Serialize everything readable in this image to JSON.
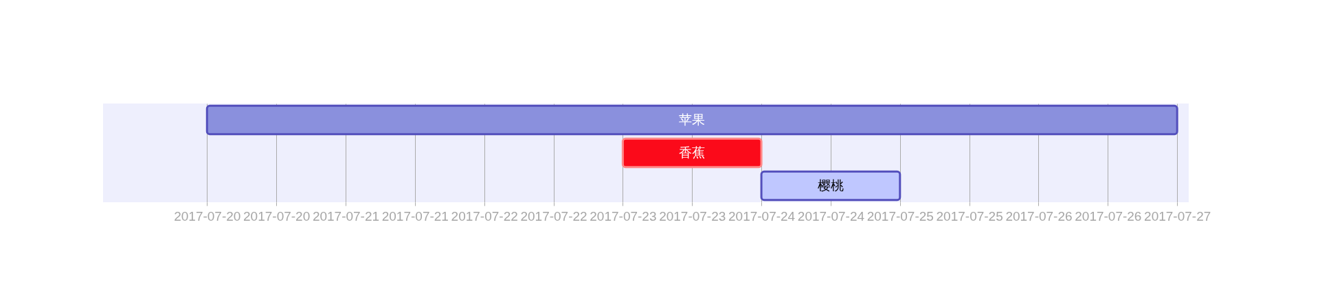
{
  "chart_data": {
    "type": "bar",
    "orientation": "horizontal",
    "categories": [
      "苹果",
      "香蕉",
      "樱桃"
    ],
    "base": [
      17367,
      17370,
      17371
    ],
    "values": [
      7,
      1,
      1
    ],
    "colors": [
      "#8a90dd",
      "#fb0a1a",
      "#bfc7ff"
    ],
    "xlim": [
      "2017-07-19T06:00",
      "2017-07-27T02:00"
    ],
    "xticks": [
      "2017-07-20",
      {
        "value": "2017-07-20T12:00",
        "label": "2017-07-20"
      },
      "2017-07-21",
      {
        "value": "2017-07-21T12:00",
        "label": "2017-07-21"
      },
      "2017-07-22",
      {
        "value": "2017-07-22T12:00",
        "label": "2017-07-22"
      },
      "2017-07-23",
      {
        "value": "2017-07-23T12:00",
        "label": "2017-07-23"
      },
      "2017-07-24",
      {
        "value": "2017-07-24T12:00",
        "label": "2017-07-24"
      },
      "2017-07-25",
      {
        "value": "2017-07-25T12:00",
        "label": "2017-07-25"
      },
      "2017-07-26",
      {
        "value": "2017-07-26T12:00",
        "label": "2017-07-26"
      },
      "2017-07-27"
    ],
    "grid": "x",
    "tick_labels": "x"
  }
}
